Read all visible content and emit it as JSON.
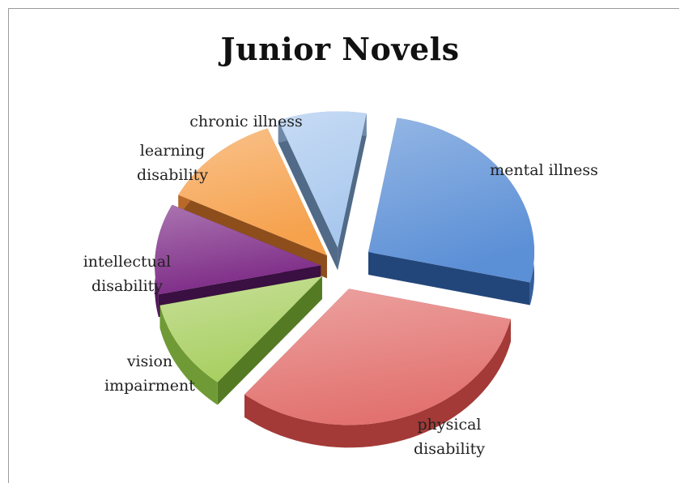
{
  "chart_data": {
    "type": "pie",
    "title": "Junior Novels",
    "slices": [
      {
        "label": [
          "mental illness"
        ],
        "value": 24,
        "color": "#5b8fd6",
        "side": "#355f9c",
        "bottom": "#23467a"
      },
      {
        "label": [
          "physical",
          "disability"
        ],
        "value": 30,
        "color": "#e2726f",
        "side": "#a33a37",
        "bottom": "#7a2220"
      },
      {
        "label": [
          "vision",
          "impairment"
        ],
        "value": 10,
        "color": "#a9cf62",
        "side": "#6f9a35",
        "bottom": "#557a24"
      },
      {
        "label": [
          "intellectual",
          "disability"
        ],
        "value": 10,
        "color": "#7d2a86",
        "side": "#4e1656",
        "bottom": "#3a0f41"
      },
      {
        "label": [
          "learning",
          "disability"
        ],
        "value": 11,
        "color": "#f6a14c",
        "side": "#b8692a",
        "bottom": "#8d4e1c"
      },
      {
        "label": [
          "chronic illness"
        ],
        "value": 8,
        "color": "#a9c8ee",
        "side": "#6e89a8",
        "bottom": "#506a88"
      }
    ],
    "legend": "none",
    "style": "3d exploded"
  }
}
